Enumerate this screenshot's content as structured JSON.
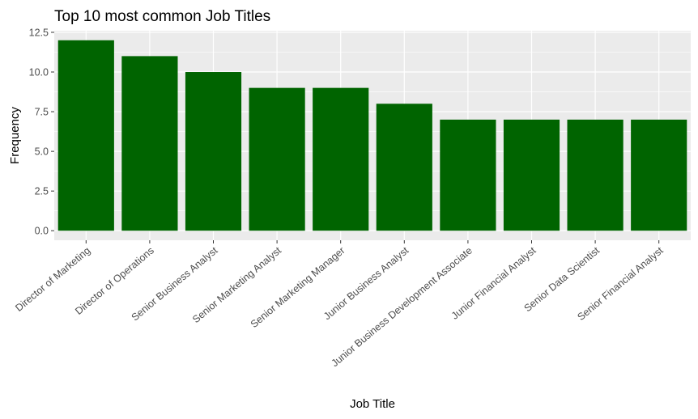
{
  "chart_data": {
    "type": "bar",
    "title": "Top 10 most common Job Titles",
    "xlabel": "Job Title",
    "ylabel": "Frequency",
    "categories": [
      "Director of Marketing",
      "Director of Operations",
      "Senior Business Analyst",
      "Senior Marketing Analyst",
      "Senior Marketing Manager",
      "Junior Business Analyst",
      "Junior Business Development Associate",
      "Junior Financial Analyst",
      "Senior Data Scientist",
      "Senior Financial Analyst"
    ],
    "values": [
      12,
      11,
      10,
      9,
      9,
      8,
      7,
      7,
      7,
      7
    ],
    "ylim": [
      -0.6,
      12.6
    ],
    "yticks": [
      0,
      2.5,
      5,
      7.5,
      10,
      12.5
    ],
    "ytick_labels": [
      "0.0",
      "2.5",
      "5.0",
      "7.5",
      "10.0",
      "12.5"
    ],
    "bar_color": "#006400",
    "panel_color": "#ebebeb",
    "grid_color": "#ffffff",
    "grid": true,
    "legend": "none"
  }
}
